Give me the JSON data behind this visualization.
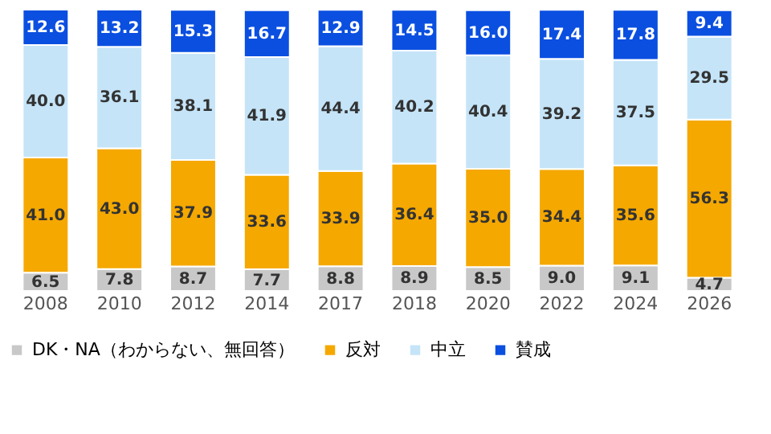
{
  "chart_data": {
    "type": "bar",
    "stacked": true,
    "legend": "bottom",
    "grid": false,
    "tick_labels": "x",
    "categories": [
      "2008",
      "2010",
      "2012",
      "2014",
      "2017",
      "2018",
      "2020",
      "2022",
      "2024",
      "2026"
    ],
    "series": [
      {
        "name": "DK・NA（わからない、無回答）",
        "color": "#c8c8c8",
        "values": [
          6.5,
          7.8,
          8.7,
          7.7,
          8.8,
          8.9,
          8.5,
          9.0,
          9.1,
          4.7
        ],
        "value_labels": [
          "6.5",
          "7.8",
          "8.7",
          "7.7",
          "8.8",
          "8.9",
          "8.5",
          "9.0",
          "9.1",
          "4.7"
        ]
      },
      {
        "name": "反対",
        "color": "#f5a800",
        "values": [
          41.0,
          43.0,
          37.9,
          33.6,
          33.9,
          36.4,
          35.0,
          34.4,
          35.6,
          56.3
        ],
        "value_labels": [
          "41.0",
          "43.0",
          "37.9",
          "33.6",
          "33.9",
          "36.4",
          "35.0",
          "34.4",
          "35.6",
          "56.3"
        ]
      },
      {
        "name": "中立",
        "color": "#c5e4f8",
        "values": [
          40.0,
          36.1,
          38.1,
          41.9,
          44.4,
          40.2,
          40.4,
          39.2,
          37.5,
          29.5
        ],
        "value_labels": [
          "40.0",
          "36.1",
          "38.1",
          "41.9",
          "44.4",
          "40.2",
          "40.4",
          "39.2",
          "37.5",
          "29.5"
        ]
      },
      {
        "name": "賛成",
        "color": "#0a4fe0",
        "values": [
          12.6,
          13.2,
          15.3,
          16.7,
          12.9,
          14.5,
          16.0,
          17.4,
          17.8,
          9.4
        ],
        "value_labels": [
          "12.6",
          "13.2",
          "15.3",
          "16.7",
          "12.9",
          "14.5",
          "16.0",
          "17.4",
          "17.8",
          "9.4"
        ]
      }
    ]
  }
}
